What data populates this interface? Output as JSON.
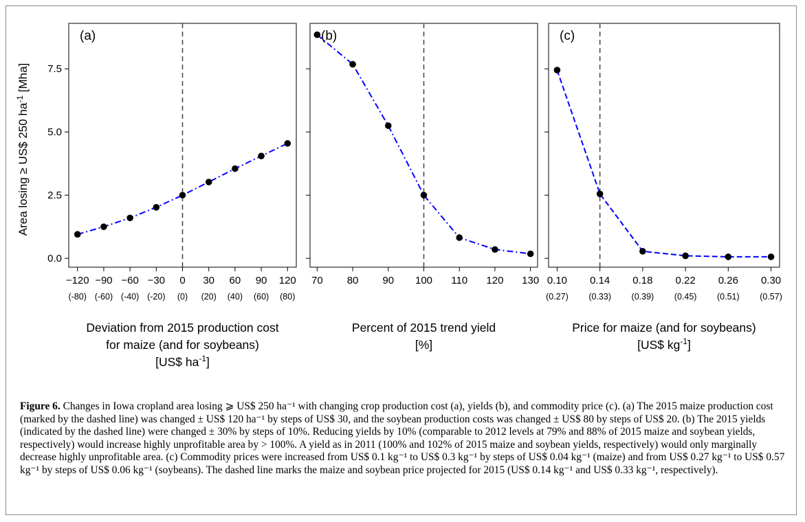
{
  "y_axis_label": "Area losing ≥ US$ 250 ha",
  "y_axis_sup": "-1",
  "y_axis_unit": " [Mha]",
  "y_ticks": [
    "0.0",
    "2.5",
    "5.0",
    "7.5"
  ],
  "panels": [
    {
      "label": "(a)",
      "xlabel_lines": [
        "Deviation from 2015 production cost",
        "for maize (and for soybeans)"
      ],
      "xlabel_unit_pre": "[US$ ha",
      "xlabel_unit_sup": "-1",
      "xlabel_unit_post": "]",
      "tick_labels": [
        "−120",
        "−90",
        "−60",
        "−30",
        "0",
        "30",
        "60",
        "90",
        "120"
      ],
      "tick_sublabels": [
        "(-80)",
        "(-60)",
        "(-40)",
        "(-20)",
        "(0)",
        "(20)",
        "(40)",
        "(60)",
        "(80)"
      ]
    },
    {
      "label": "(b)",
      "xlabel_lines": [
        "Percent of 2015 trend yield"
      ],
      "xlabel_unit_pre": "[%]",
      "xlabel_unit_sup": "",
      "xlabel_unit_post": "",
      "tick_labels": [
        "70",
        "80",
        "90",
        "100",
        "110",
        "120",
        "130"
      ],
      "tick_sublabels": []
    },
    {
      "label": "(c)",
      "xlabel_lines": [
        "Price for maize (and for soybeans)"
      ],
      "xlabel_unit_pre": "[US$ kg",
      "xlabel_unit_sup": "-1",
      "xlabel_unit_post": "]",
      "tick_labels": [
        "0.10",
        "0.14",
        "0.18",
        "0.22",
        "0.26",
        "0.30"
      ],
      "tick_sublabels": [
        "(0.27)",
        "(0.33)",
        "(0.39)",
        "(0.45)",
        "(0.51)",
        "(0.57)"
      ]
    }
  ],
  "chart_data": [
    {
      "type": "line",
      "panel": "(a)",
      "x": [
        -120,
        -90,
        -60,
        -30,
        0,
        30,
        60,
        90,
        120
      ],
      "values": [
        0.95,
        1.25,
        1.6,
        2.02,
        2.5,
        3.02,
        3.55,
        4.05,
        4.55
      ],
      "xlim": [
        -130,
        130
      ],
      "ylim": [
        -0.35,
        9.3
      ],
      "reference_x": 0,
      "line_style": "dash-dot",
      "line_color": "#0000ff",
      "marker_color": "#000000"
    },
    {
      "type": "line",
      "panel": "(b)",
      "x": [
        70,
        80,
        90,
        100,
        110,
        120,
        130
      ],
      "values": [
        8.85,
        7.68,
        5.25,
        2.5,
        0.82,
        0.35,
        0.18
      ],
      "xlim": [
        68,
        132
      ],
      "ylim": [
        -0.35,
        9.3
      ],
      "reference_x": 100,
      "line_style": "dash-dot",
      "line_color": "#0000ff",
      "marker_color": "#000000"
    },
    {
      "type": "line",
      "panel": "(c)",
      "x": [
        0.1,
        0.14,
        0.18,
        0.22,
        0.26,
        0.3
      ],
      "values": [
        7.45,
        2.55,
        0.28,
        0.1,
        0.06,
        0.06
      ],
      "xlim": [
        0.092,
        0.308
      ],
      "ylim": [
        -0.35,
        9.3
      ],
      "reference_x": 0.14,
      "line_style": "dashed",
      "line_color": "#0000ff",
      "marker_color": "#000000"
    }
  ],
  "caption": {
    "fig_label": "Figure 6.",
    "text": " Changes in Iowa cropland area losing ⩾ US$ 250 ha⁻¹ with changing crop production cost (a), yields (b), and commodity price (c). (a) The 2015 maize production cost (marked by the dashed line) was changed ± US$ 120 ha⁻¹ by steps of US$ 30, and the soybean production costs was changed ± US$ 80 by steps of US$ 20. (b) The 2015 yields (indicated by the dashed line) were changed ± 30% by steps of 10%. Reducing yields by 10% (comparable to 2012 levels at 79% and 88% of 2015 maize and soybean yields, respectively) would increase highly unprofitable area by > 100%. A yield as in 2011 (100% and 102% of 2015 maize and soybean yields, respectively) would only marginally decrease highly unprofitable area. (c) Commodity prices were increased from US$ 0.1 kg⁻¹ to US$ 0.3 kg⁻¹ by steps of US$ 0.04 kg⁻¹ (maize) and from US$ 0.27 kg⁻¹ to US$ 0.57 kg⁻¹ by steps of US$ 0.06 kg⁻¹ (soybeans). The dashed line marks the maize and soybean price projected for 2015 (US$ 0.14 kg⁻¹ and US$ 0.33 kg⁻¹, respectively)."
  }
}
